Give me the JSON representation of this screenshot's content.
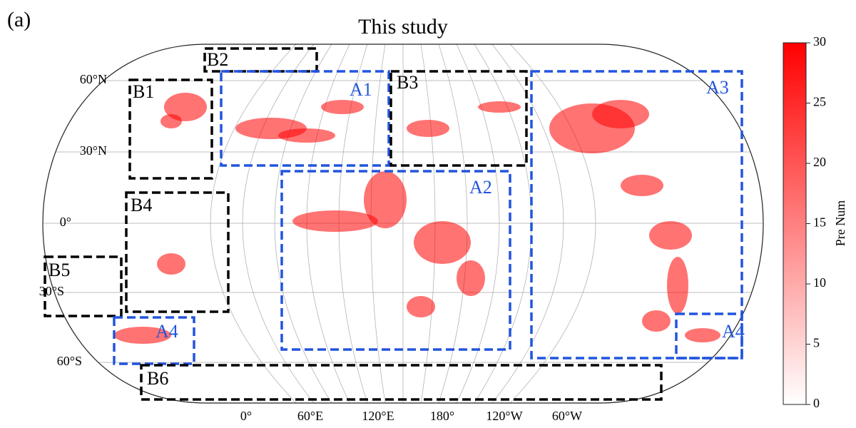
{
  "panel_label": "(a)",
  "title": "This study",
  "lat_labels": [
    "60°N",
    "30°N",
    "0°",
    "30°S",
    "60°S"
  ],
  "lon_labels": [
    "0°",
    "60°E",
    "120°E",
    "180°",
    "120°W",
    "60°W"
  ],
  "regions": [
    {
      "label": "B2",
      "color": "#000000"
    },
    {
      "label": "B1",
      "color": "#000000"
    },
    {
      "label": "A1",
      "color": "#2255dd"
    },
    {
      "label": "B3",
      "color": "#000000"
    },
    {
      "label": "A3",
      "color": "#2255dd"
    },
    {
      "label": "A2",
      "color": "#2255dd"
    },
    {
      "label": "B4",
      "color": "#000000"
    },
    {
      "label": "B5",
      "color": "#000000"
    },
    {
      "label": "A4",
      "color": "#2255dd"
    },
    {
      "label": "A4",
      "color": "#2255dd"
    },
    {
      "label": "B6",
      "color": "#000000"
    }
  ],
  "colorbar": {
    "label": "Pre Num",
    "lim": [
      0,
      30
    ],
    "ticks": [
      0,
      5,
      10,
      15,
      20,
      25,
      30
    ],
    "color": "#ff0000"
  }
}
